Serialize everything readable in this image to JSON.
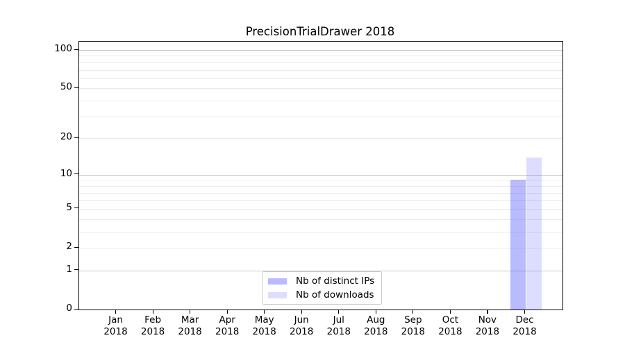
{
  "chart_data": {
    "type": "bar",
    "title": "PrecisionTrialDrawer 2018",
    "categories": [
      "Jan",
      "Feb",
      "Mar",
      "Apr",
      "May",
      "Jun",
      "Jul",
      "Aug",
      "Sep",
      "Oct",
      "Nov",
      "Dec"
    ],
    "x_year_label": "2018",
    "series": [
      {
        "name": "Nb of distinct IPs",
        "color": "rgba(102,102,255,0.45)",
        "values": [
          0,
          0,
          0,
          0,
          0,
          0,
          0,
          0,
          0,
          0,
          0,
          9
        ]
      },
      {
        "name": "Nb of downloads",
        "color": "rgba(102,102,255,0.22)",
        "values": [
          0,
          0,
          0,
          0,
          0,
          0,
          0,
          0,
          0,
          0,
          0,
          14
        ]
      }
    ],
    "yscale": "log1p",
    "yticks": [
      0,
      1,
      2,
      5,
      10,
      20,
      50,
      100
    ],
    "ylim": [
      0,
      116
    ],
    "xlim": [
      -1,
      12
    ],
    "grid": {
      "major": [
        1,
        10,
        100
      ],
      "minor": [
        2,
        3,
        4,
        5,
        6,
        7,
        8,
        9,
        20,
        30,
        40,
        50,
        60,
        70,
        80,
        90
      ]
    },
    "legend_position": "lower center",
    "colors": {
      "grid_major": "#c6c6c6",
      "grid_minor": "#eaeaea",
      "spine": "#000000",
      "text": "#000000",
      "legend_border": "#cccccc"
    }
  }
}
